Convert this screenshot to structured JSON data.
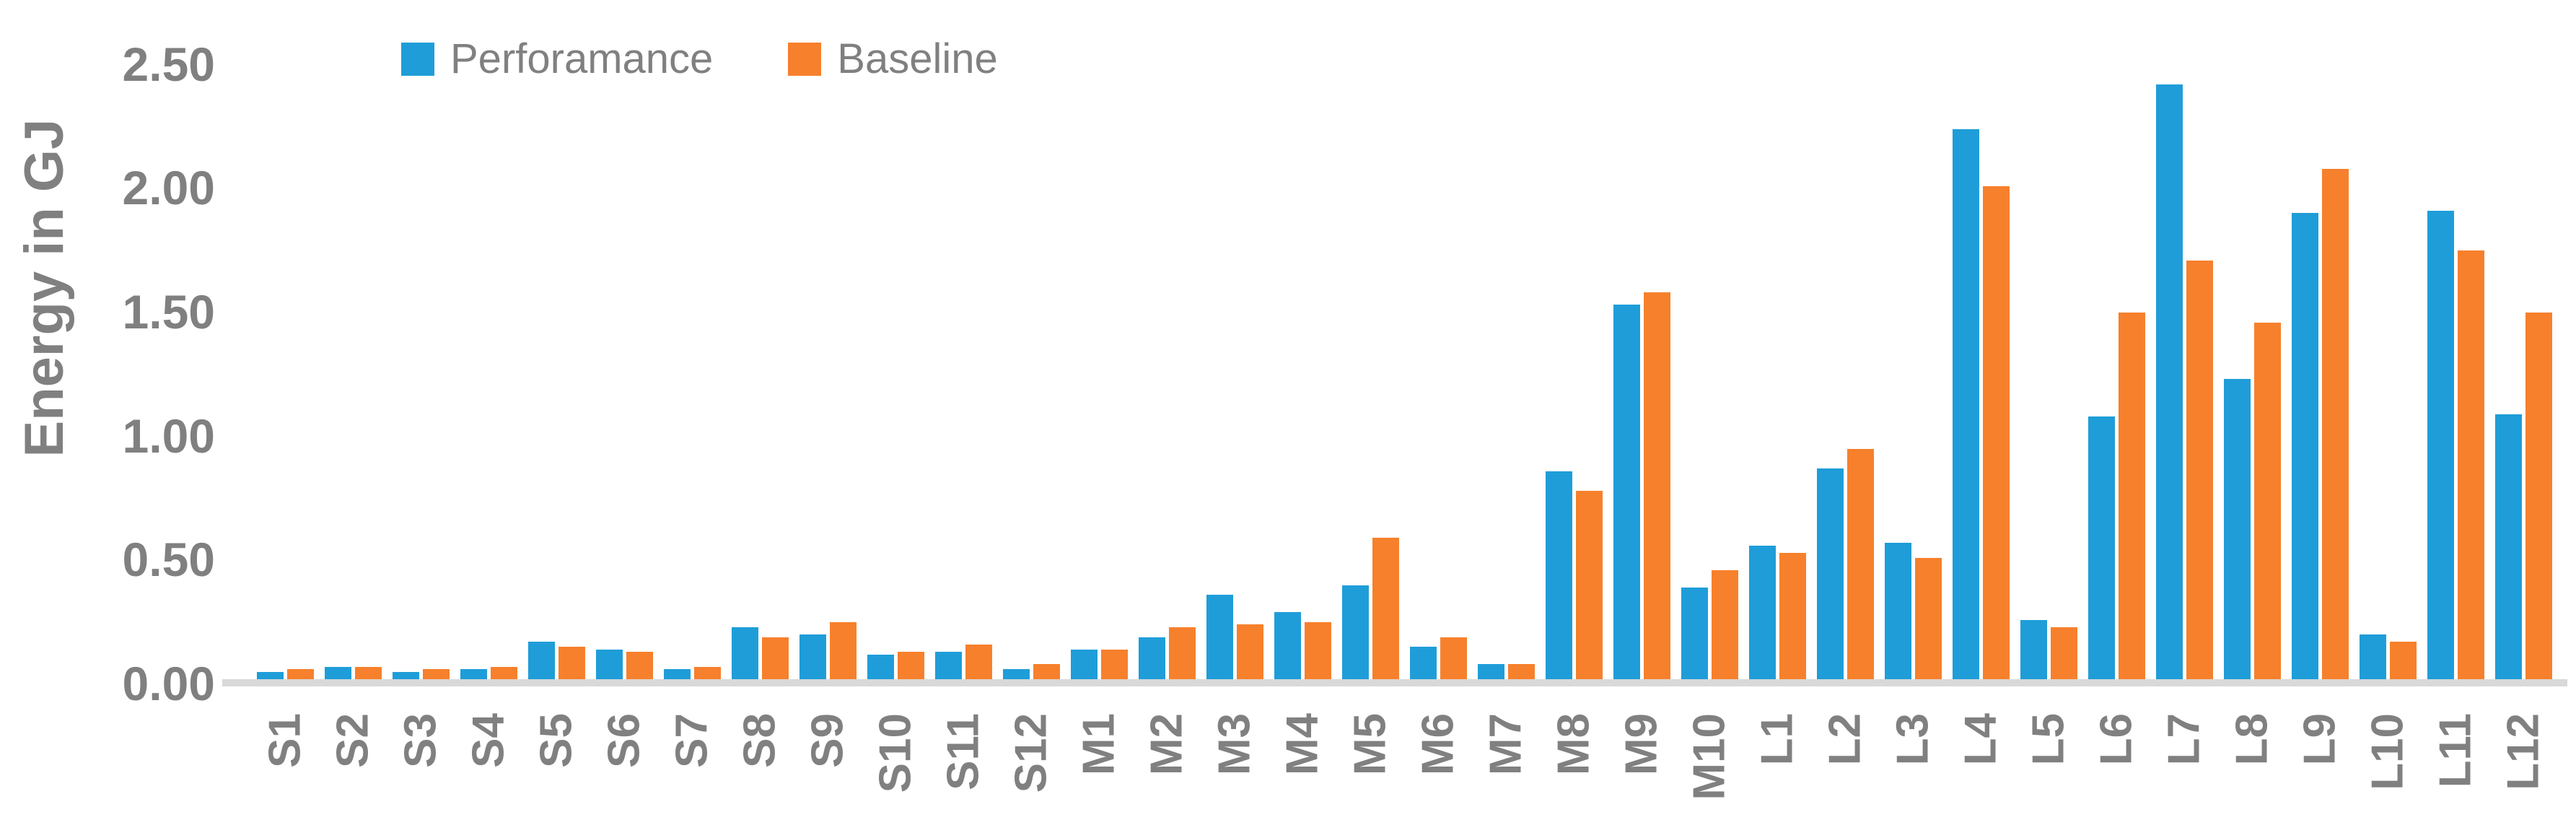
{
  "chart_data": {
    "type": "bar",
    "title": "",
    "xlabel": "",
    "ylabel": "Energy in GJ",
    "ylim": [
      0,
      2.5
    ],
    "yticks": [
      {
        "label": "0.00",
        "value": 0.0
      },
      {
        "label": "0.50",
        "value": 0.5
      },
      {
        "label": "1.00",
        "value": 1.0
      },
      {
        "label": "1.50",
        "value": 1.5
      },
      {
        "label": "2.00",
        "value": 2.0
      },
      {
        "label": "2.50",
        "value": 2.5
      }
    ],
    "grid": false,
    "legend_position": "top-left",
    "categories": [
      "S1",
      "S2",
      "S3",
      "S4",
      "S5",
      "S6",
      "S7",
      "S8",
      "S9",
      "S10",
      "S11",
      "S12",
      "M1",
      "M2",
      "M3",
      "M4",
      "M5",
      "M6",
      "M7",
      "M8",
      "M9",
      "M10",
      "L1",
      "L2",
      "L3",
      "L4",
      "L5",
      "L6",
      "L7",
      "L8",
      "L9",
      "L10",
      "L11",
      "L12"
    ],
    "series": [
      {
        "name": "Perforamance",
        "color": "#1f9dd8",
        "values": [
          0.03,
          0.05,
          0.03,
          0.04,
          0.15,
          0.12,
          0.04,
          0.21,
          0.18,
          0.1,
          0.11,
          0.04,
          0.12,
          0.17,
          0.34,
          0.27,
          0.38,
          0.13,
          0.06,
          0.84,
          1.51,
          0.37,
          0.54,
          0.85,
          0.55,
          2.22,
          0.24,
          1.06,
          2.4,
          1.21,
          1.88,
          0.18,
          1.89,
          1.07
        ]
      },
      {
        "name": "Baseline",
        "color": "#f7802c",
        "values": [
          0.04,
          0.05,
          0.04,
          0.05,
          0.13,
          0.11,
          0.05,
          0.17,
          0.23,
          0.11,
          0.14,
          0.06,
          0.12,
          0.21,
          0.22,
          0.23,
          0.57,
          0.17,
          0.06,
          0.76,
          1.56,
          0.44,
          0.51,
          0.93,
          0.49,
          1.99,
          0.21,
          1.48,
          1.69,
          1.44,
          2.06,
          0.15,
          1.73,
          1.48
        ]
      }
    ]
  },
  "colors": {
    "text": "#808080",
    "axis_line": "#d9d9d9",
    "background": "#ffffff"
  }
}
